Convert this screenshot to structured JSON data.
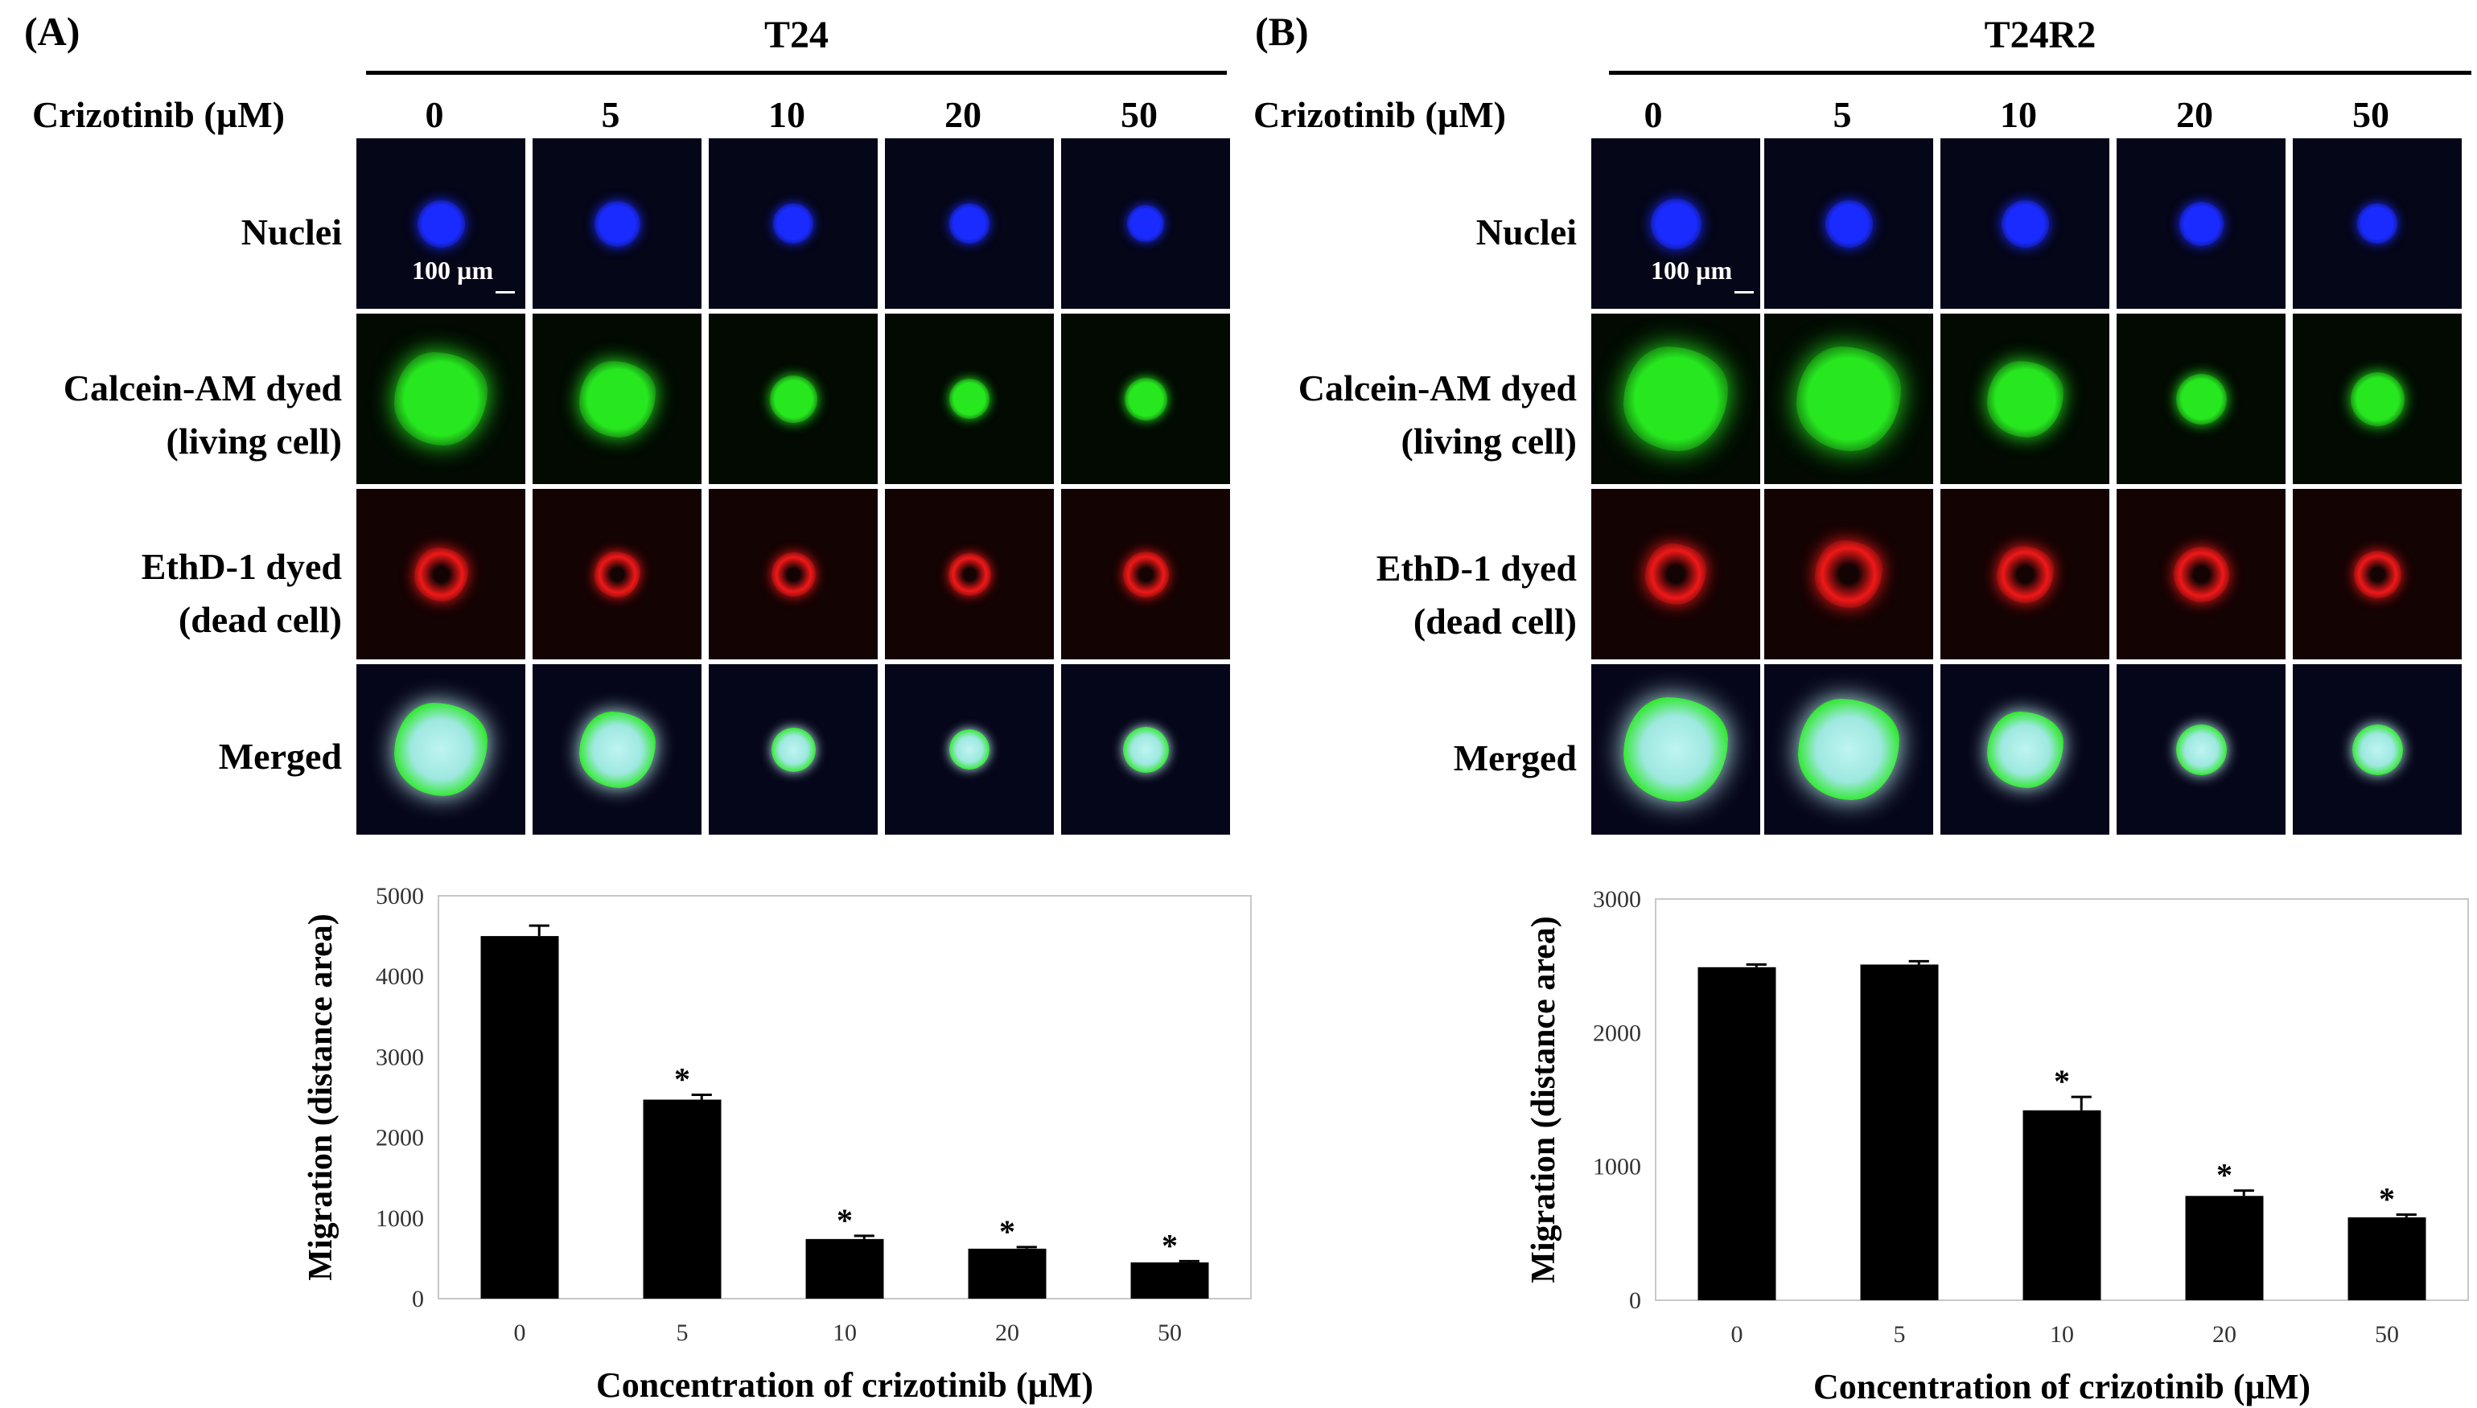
{
  "panels": [
    {
      "letter": "(A)",
      "cell_line": "T24",
      "dose_header": "Crizotinib (µM)",
      "doses": [
        "0",
        "5",
        "10",
        "20",
        "50"
      ],
      "rows": [
        {
          "label_lines": [
            "Nuclei"
          ],
          "stain": "nuclei"
        },
        {
          "label_lines": [
            "Calcein-AM dyed",
            "(living cell)"
          ],
          "stain": "calcein"
        },
        {
          "label_lines": [
            "EthD-1 dyed",
            "(dead cell)"
          ],
          "stain": "ethd"
        },
        {
          "label_lines": [
            "Merged"
          ],
          "stain": "merged"
        }
      ],
      "scale_bar": "100 µm"
    },
    {
      "letter": "(B)",
      "cell_line": "T24R2",
      "dose_header": "Crizotinib (µM)",
      "doses": [
        "0",
        "5",
        "10",
        "20",
        "50"
      ],
      "rows": [
        {
          "label_lines": [
            "Nuclei"
          ],
          "stain": "nuclei"
        },
        {
          "label_lines": [
            "Calcein-AM dyed",
            "(living cell)"
          ],
          "stain": "calcein"
        },
        {
          "label_lines": [
            "EthD-1 dyed",
            "(dead cell)"
          ],
          "stain": "ethd"
        },
        {
          "label_lines": [
            "Merged"
          ],
          "stain": "merged"
        }
      ],
      "scale_bar": "100 µm"
    }
  ],
  "stain_colors": {
    "nuclei": "#1a2bff",
    "calcein": "#27e81f",
    "ethd": "#f01818",
    "merged": "#bff4f2",
    "tile_bg_nuclei": "#050618",
    "tile_bg_calcein": "#020a02",
    "tile_bg_ethd": "#140303",
    "tile_bg_merged": "#06061a"
  },
  "chart_data": [
    {
      "type": "bar",
      "categories": [
        "0",
        "5",
        "10",
        "20",
        "50"
      ],
      "values": [
        4500,
        2470,
        740,
        620,
        450
      ],
      "errors": [
        130,
        60,
        40,
        20,
        15
      ],
      "significance": [
        "",
        "*",
        "*",
        "*",
        "*"
      ],
      "xlabel": "Concentration of crizotinib (µM)",
      "ylabel": "Migration (distance area)",
      "ylim": [
        0,
        5000
      ],
      "yticks": [
        0,
        1000,
        2000,
        3000,
        4000,
        5000
      ],
      "bar_color": "#000000",
      "grid": false
    },
    {
      "type": "bar",
      "categories": [
        "0",
        "5",
        "10",
        "20",
        "50"
      ],
      "values": [
        2490,
        2510,
        1420,
        780,
        620
      ],
      "errors": [
        20,
        25,
        100,
        40,
        20
      ],
      "significance": [
        "",
        "",
        "*",
        "*",
        "*"
      ],
      "xlabel": "Concentration of crizotinib (µM)",
      "ylabel": "Migration (distance area)",
      "ylim": [
        0,
        3000
      ],
      "yticks": [
        0,
        1000,
        2000,
        3000
      ],
      "bar_color": "#000000",
      "grid": false
    }
  ]
}
